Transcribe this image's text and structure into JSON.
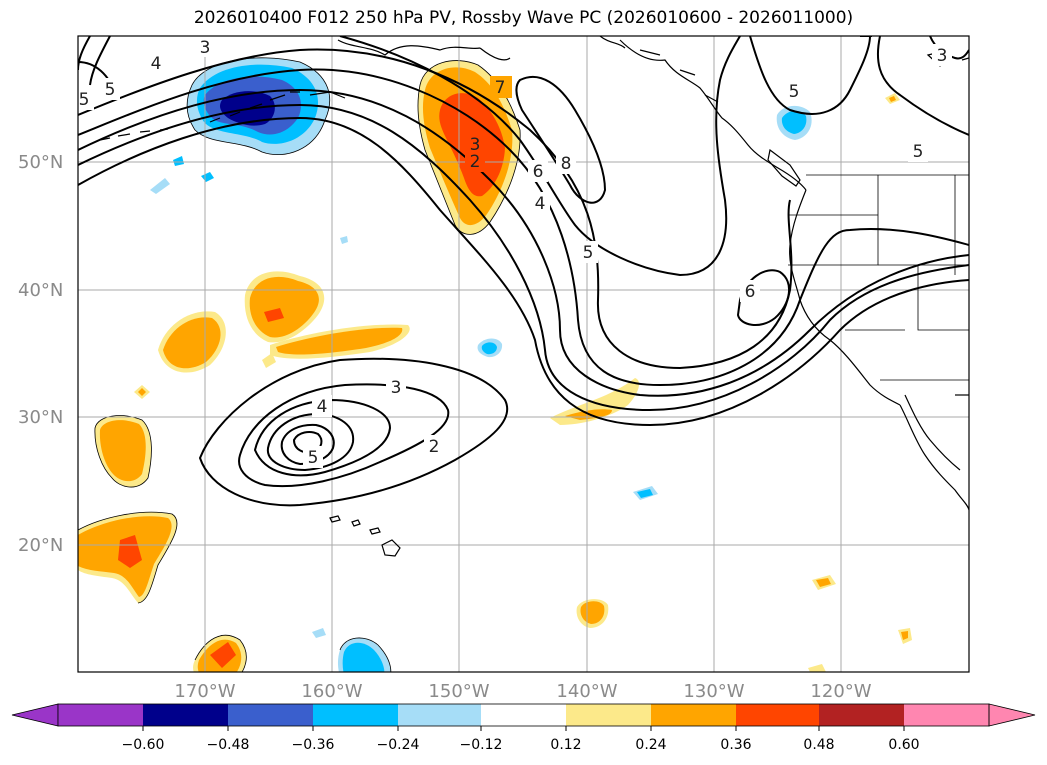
{
  "title": "2026010400 F012 250 hPa PV, Rossby Wave PC (2026010600 - 2026011000)",
  "lat_labels": [
    "50°N",
    "40°N",
    "30°N",
    "20°N"
  ],
  "lon_labels": [
    "170°W",
    "160°W",
    "150°W",
    "140°W",
    "130°W",
    "120°W"
  ],
  "colorbar": {
    "tick_labels": [
      "−0.60",
      "−0.48",
      "−0.36",
      "−0.24",
      "−0.12",
      "0.12",
      "0.24",
      "0.36",
      "0.48",
      "0.60"
    ],
    "colors": {
      "below_min": "#9a35c8",
      "n060": "#00008b",
      "n048": "#3a5fcd",
      "n036": "#00bfff",
      "n024": "#a6ddf7",
      "neutral": "#ffffff",
      "p012": "#fce98a",
      "p024": "#ffa500",
      "p036": "#ff4500",
      "p048": "#b22222",
      "above_max": "#ff86b0"
    }
  },
  "contour_labels": [
    "3",
    "5",
    "4",
    "7",
    "3",
    "2",
    "6",
    "8",
    "4",
    "5",
    "6",
    "5",
    "3",
    "4",
    "5",
    "2",
    "3",
    "5",
    "5"
  ]
}
